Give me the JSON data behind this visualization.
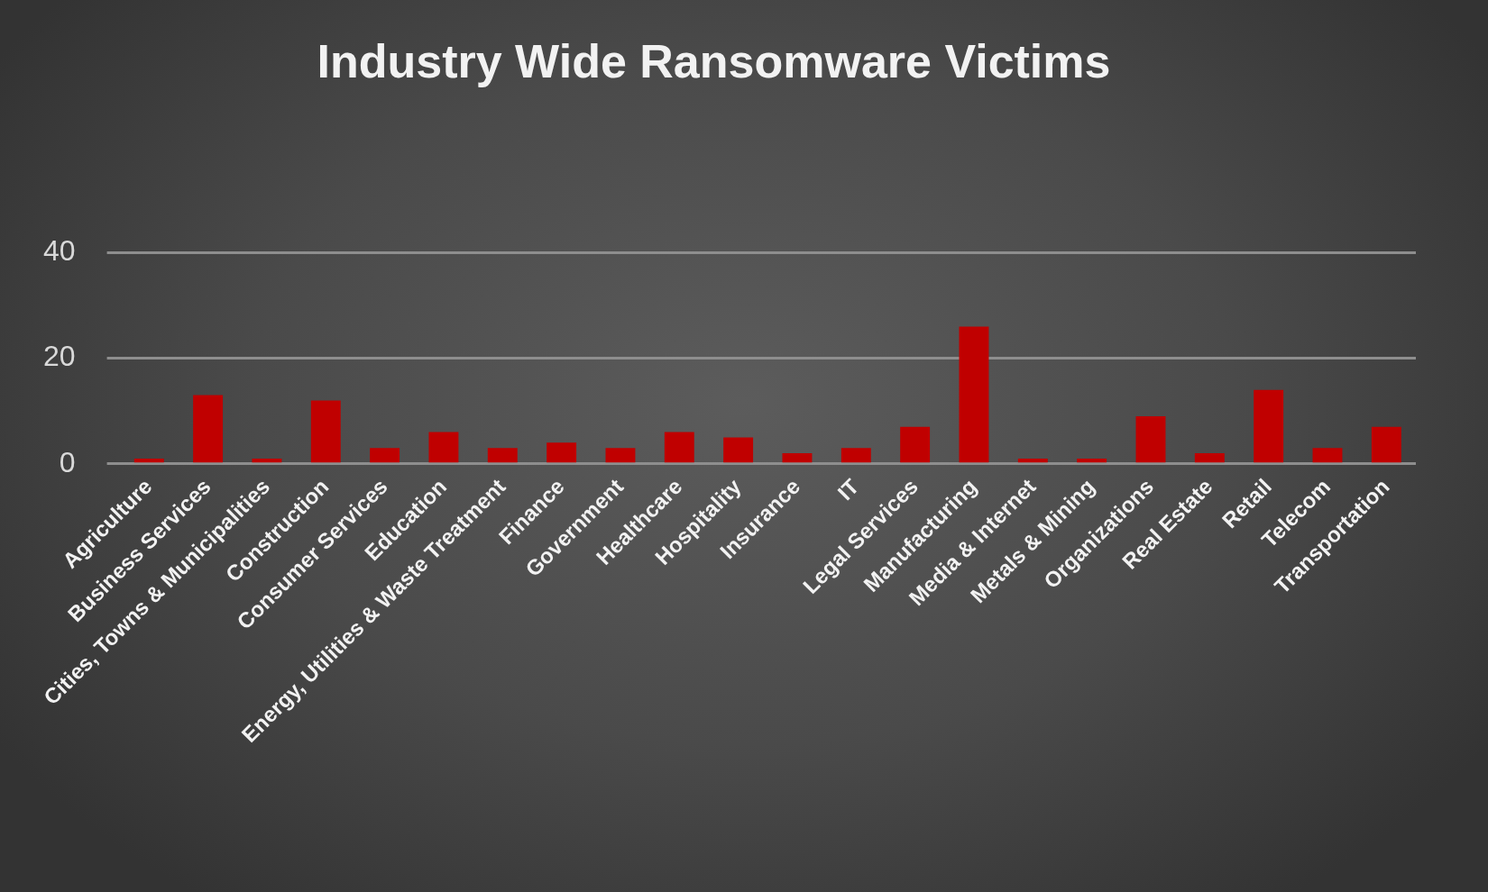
{
  "chart_data": {
    "type": "bar",
    "title": "Industry Wide Ransomware Victims",
    "categories": [
      "Agriculture",
      "Business Services",
      "Cities, Towns & Municipalities",
      "Construction",
      "Consumer Services",
      "Education",
      "Energy, Utilities & Waste Treatment",
      "Finance",
      "Government",
      "Healthcare",
      "Hospitality",
      "Insurance",
      "IT",
      "Legal Services",
      "Manufacturing",
      "Media & Internet",
      "Metals & Mining",
      "Organizations",
      "Real Estate",
      "Retail",
      "Telecom",
      "Transportation"
    ],
    "values": [
      1,
      13,
      1,
      12,
      3,
      6,
      3,
      4,
      3,
      6,
      5,
      2,
      3,
      7,
      26,
      1,
      1,
      9,
      2,
      14,
      3,
      7
    ],
    "color": "#c00000",
    "ylim": [
      0,
      40
    ],
    "yticks": [
      0,
      20,
      40
    ],
    "grid": "y"
  }
}
